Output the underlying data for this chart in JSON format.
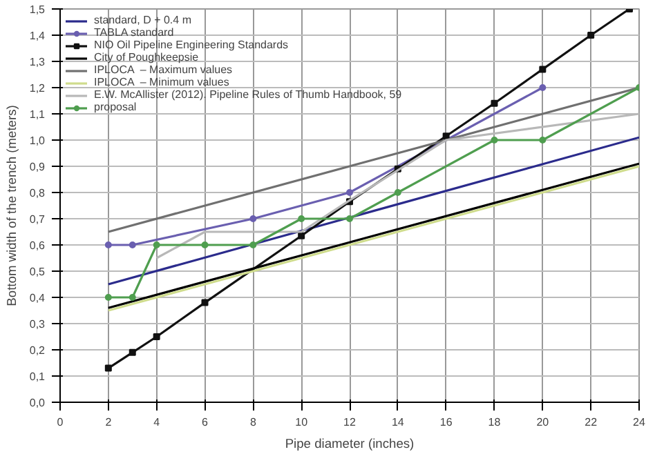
{
  "chart_data": {
    "type": "line",
    "xlabel": "Pipe diameter (inches)",
    "ylabel": "Bottom width of the trench (meters)",
    "xlim": [
      0,
      24
    ],
    "xticks": [
      0,
      2,
      4,
      6,
      8,
      10,
      12,
      14,
      16,
      18,
      20,
      22,
      24
    ],
    "ylim": [
      0,
      1.5
    ],
    "yticks": [
      {
        "value": 0,
        "label": "0,0"
      },
      {
        "value": 0.1,
        "label": "0,1"
      },
      {
        "value": 0.2,
        "label": "0,2"
      },
      {
        "value": 0.3,
        "label": "0,3"
      },
      {
        "value": 0.4,
        "label": "0,4"
      },
      {
        "value": 0.5,
        "label": "0,5"
      },
      {
        "value": 0.6,
        "label": "0,6"
      },
      {
        "value": 0.7,
        "label": "0,7"
      },
      {
        "value": 0.8,
        "label": "0,8"
      },
      {
        "value": 0.9,
        "label": "0,9"
      },
      {
        "value": 1.0,
        "label": "1,0"
      },
      {
        "value": 1.1,
        "label": "1,1"
      },
      {
        "value": 1.2,
        "label": "1,2"
      },
      {
        "value": 1.3,
        "label": "1,3"
      },
      {
        "value": 1.4,
        "label": "1,4"
      },
      {
        "value": 1.5,
        "label": "1,5"
      }
    ],
    "grid": true,
    "legend": "top left",
    "series": [
      {
        "name": "standard, D + 0.4 m",
        "color": "#2b2b8c",
        "marker": "none",
        "x": [
          2,
          24
        ],
        "values": [
          0.45,
          1.01
        ]
      },
      {
        "name": "TABLA standard",
        "color": "#6a5fb0",
        "marker": "circle",
        "x": [
          2,
          3,
          8,
          12,
          20
        ],
        "values": [
          0.6,
          0.6,
          0.7,
          0.8,
          1.2
        ]
      },
      {
        "name": "NIO Oil Pipeline Engineering Standards",
        "color": "#111111",
        "marker": "square",
        "x": [
          2,
          3,
          4,
          6,
          10,
          12,
          14,
          16,
          18,
          20,
          22,
          23.6
        ],
        "values": [
          0.13,
          0.19,
          0.25,
          0.38,
          0.635,
          0.765,
          0.89,
          1.015,
          1.14,
          1.27,
          1.4,
          1.5
        ]
      },
      {
        "name": "City of Poughkeepsie",
        "color": "#000000",
        "marker": "none",
        "x": [
          2,
          24
        ],
        "values": [
          0.36,
          0.91
        ]
      },
      {
        "name": "IPLOCA  – Maximum values",
        "color": "#707070",
        "marker": "none",
        "x": [
          2,
          24
        ],
        "values": [
          0.65,
          1.2
        ]
      },
      {
        "name": "IPLOCA  – Minimum values",
        "color": "#cfdc8c",
        "marker": "none",
        "x": [
          2,
          24
        ],
        "values": [
          0.35,
          0.9
        ]
      },
      {
        "name": "E.W. McAllister (2012). Pipeline Rules of Thumb Handbook, 59",
        "color": "#b8b8b8",
        "marker": "none",
        "x": [
          4,
          6,
          10,
          12,
          16,
          24
        ],
        "values": [
          0.55,
          0.65,
          0.65,
          0.77,
          1.0,
          1.1
        ]
      },
      {
        "name": "proposal",
        "color": "#4f9e4f",
        "marker": "circle",
        "x": [
          2,
          3,
          4,
          6,
          8,
          10,
          12,
          14,
          18,
          20,
          24
        ],
        "values": [
          0.4,
          0.4,
          0.6,
          0.6,
          0.6,
          0.7,
          0.7,
          0.8,
          1.0,
          1.0,
          1.2
        ]
      }
    ]
  }
}
